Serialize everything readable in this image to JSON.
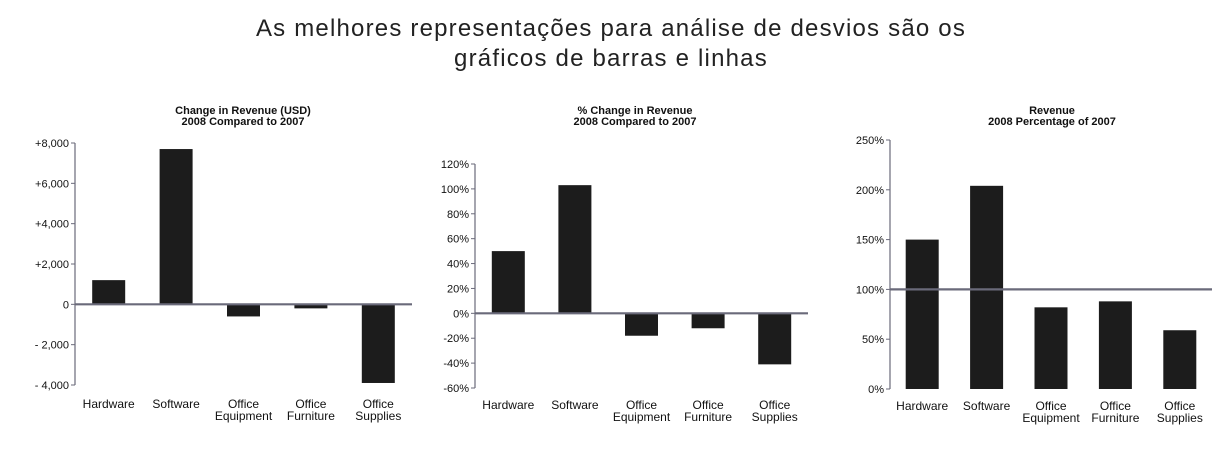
{
  "page": {
    "title_line1": "As melhores representações para análise de desvios são os",
    "title_line2": "gráficos de barras e linhas"
  },
  "colors": {
    "bar": "#1c1c1c",
    "axis": "#6a6a7a",
    "text": "#111111"
  },
  "chart_data": [
    {
      "type": "bar",
      "title_line1": "Change in Revenue (USD)",
      "title_line2": "2008 Compared to 2007",
      "categories": [
        [
          "Hardware"
        ],
        [
          "Software"
        ],
        [
          "Office",
          "Equipment"
        ],
        [
          "Office",
          "Furniture"
        ],
        [
          "Office",
          "Supplies"
        ]
      ],
      "values": [
        1200,
        7700,
        -600,
        -200,
        -3900
      ],
      "ylim": [
        -4000,
        8000
      ],
      "yticks": [
        8000,
        6000,
        4000,
        2000,
        0,
        -2000,
        -4000
      ],
      "ytick_labels": [
        "+8,000",
        "+6,000",
        "+4,000",
        "+2,000",
        "0",
        "- 2,000",
        "- 4,000"
      ],
      "reference_line": 0
    },
    {
      "type": "bar",
      "title_line1": "% Change in Revenue",
      "title_line2": "2008 Compared to 2007",
      "categories": [
        [
          "Hardware"
        ],
        [
          "Software"
        ],
        [
          "Office",
          "Equipment"
        ],
        [
          "Office",
          "Furniture"
        ],
        [
          "Office",
          "Supplies"
        ]
      ],
      "values": [
        50,
        103,
        -18,
        -12,
        -41
      ],
      "ylim": [
        -60,
        120
      ],
      "yticks": [
        120,
        100,
        80,
        60,
        40,
        20,
        0,
        -20,
        -40,
        -60
      ],
      "ytick_labels": [
        "120%",
        "100%",
        "80%",
        "60%",
        "40%",
        "20%",
        "0%",
        "-20%",
        "-40%",
        "-60%"
      ],
      "reference_line": 0
    },
    {
      "type": "bar",
      "title_line1": "Revenue",
      "title_line2": "2008 Percentage of 2007",
      "categories": [
        [
          "Hardware"
        ],
        [
          "Software"
        ],
        [
          "Office",
          "Equipment"
        ],
        [
          "Office",
          "Furniture"
        ],
        [
          "Office",
          "Supplies"
        ]
      ],
      "values": [
        150,
        204,
        82,
        88,
        59
      ],
      "ylim": [
        0,
        250
      ],
      "yticks": [
        250,
        200,
        150,
        100,
        50,
        0
      ],
      "ytick_labels": [
        "250%",
        "200%",
        "150%",
        "100%",
        "50%",
        "0%"
      ],
      "reference_line": 100
    }
  ]
}
